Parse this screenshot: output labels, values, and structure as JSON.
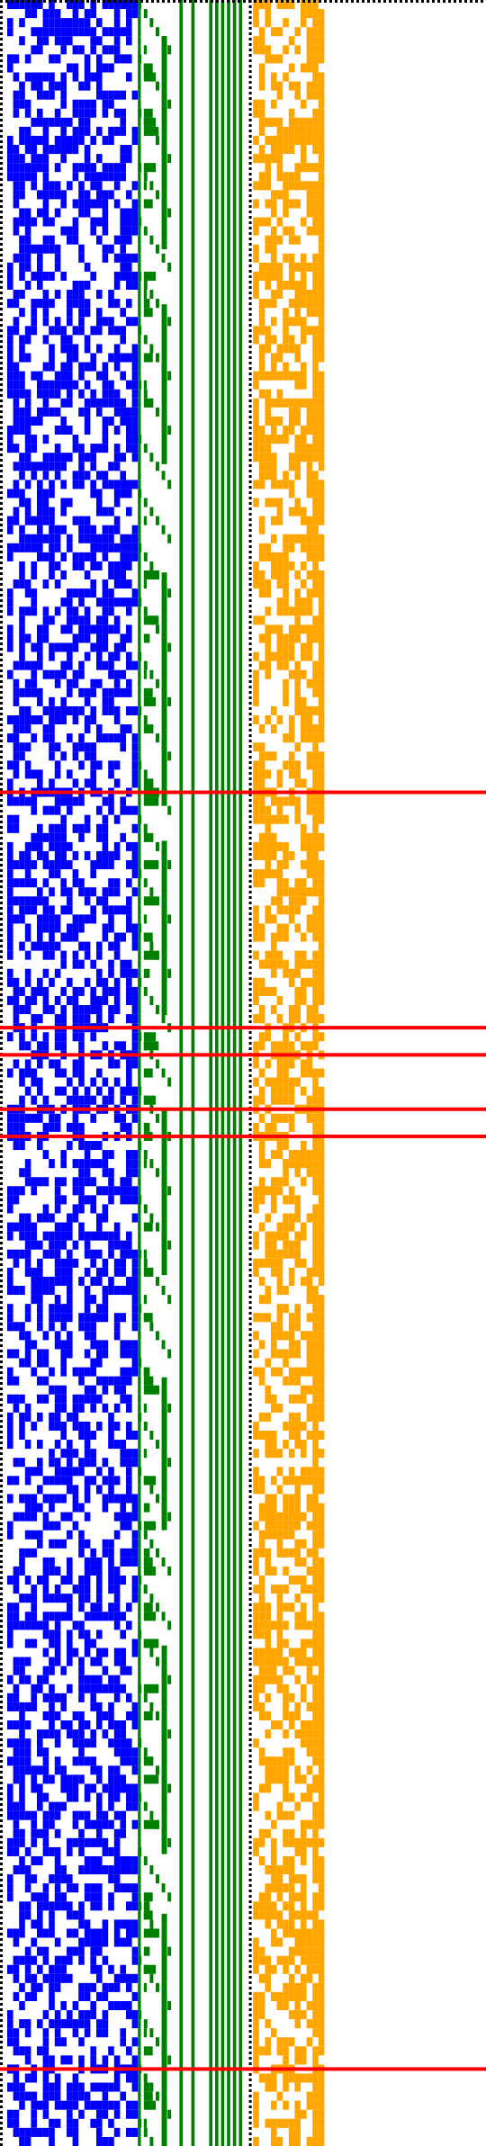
{
  "colors": {
    "background": "#ffffff",
    "dots": "#000000",
    "panel_a": "#0000ff",
    "panel_b": "#008000",
    "panel_c": "#ffa500",
    "markers": "#ff0000"
  },
  "diagram": {
    "type": "bit-matrix",
    "grid": {
      "rows": 237,
      "columns": 54
    },
    "panels": [
      {
        "id": "panel-a",
        "color_key": "panel_a",
        "columns": [
          0,
          21
        ],
        "fill_density": 0.52
      },
      {
        "id": "panel-b",
        "color_key": "panel_b",
        "columns": [
          22,
          40
        ]
      },
      {
        "id": "panel-c",
        "color_key": "panel_c",
        "columns": [
          42,
          53
        ],
        "fill_density": 0.55
      }
    ],
    "solid_columns": [
      29,
      31,
      34,
      35,
      36,
      37,
      38,
      39
    ],
    "dotted_separators": [
      "left-edge",
      "top-edge",
      "before-panel-c"
    ],
    "marker_rows": [
      87,
      113,
      116,
      122,
      125,
      228
    ]
  }
}
